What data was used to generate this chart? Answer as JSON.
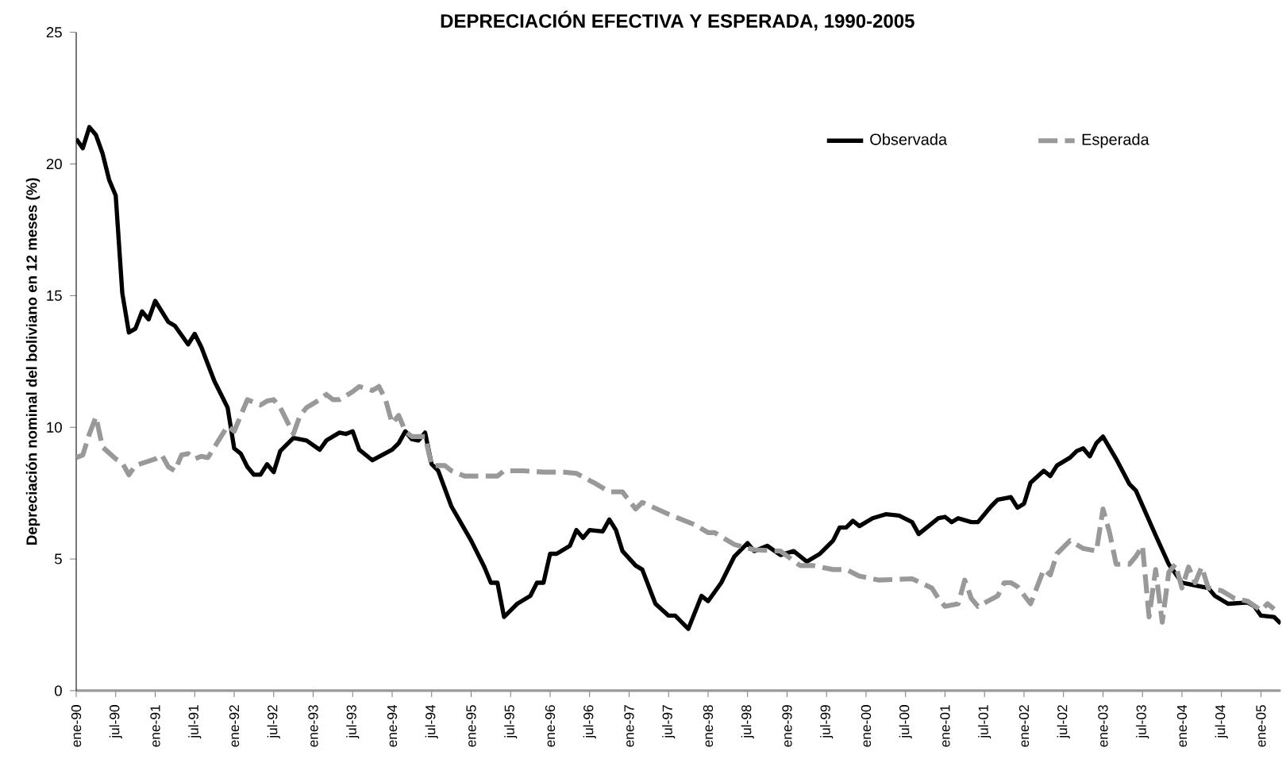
{
  "chart_data": {
    "type": "line",
    "title": "DEPRECIACIÓN EFECTIVA Y ESPERADA, 1990-2005",
    "ylabel": "Depreciación nominal del boliviano en 12 meses (%)",
    "xlim": [
      "1990-01",
      "2005-04"
    ],
    "ylim": [
      0,
      25
    ],
    "yticks": [
      0,
      5,
      10,
      15,
      20,
      25
    ],
    "xticks": [
      {
        "value": "1990-01",
        "label": "ene-90"
      },
      {
        "value": "1990-07",
        "label": "jul-90"
      },
      {
        "value": "1991-01",
        "label": "ene-91"
      },
      {
        "value": "1991-07",
        "label": "jul-91"
      },
      {
        "value": "1992-01",
        "label": "ene-92"
      },
      {
        "value": "1992-07",
        "label": "jul-92"
      },
      {
        "value": "1993-01",
        "label": "ene-93"
      },
      {
        "value": "1993-07",
        "label": "jul-93"
      },
      {
        "value": "1994-01",
        "label": "ene-94"
      },
      {
        "value": "1994-07",
        "label": "jul-94"
      },
      {
        "value": "1995-01",
        "label": "ene-95"
      },
      {
        "value": "1995-07",
        "label": "jul-95"
      },
      {
        "value": "1996-01",
        "label": "ene-96"
      },
      {
        "value": "1996-07",
        "label": "jul-96"
      },
      {
        "value": "1997-01",
        "label": "ene-97"
      },
      {
        "value": "1997-07",
        "label": "jul-97"
      },
      {
        "value": "1998-01",
        "label": "ene-98"
      },
      {
        "value": "1998-07",
        "label": "jul-98"
      },
      {
        "value": "1999-01",
        "label": "ene-99"
      },
      {
        "value": "1999-07",
        "label": "jul-99"
      },
      {
        "value": "2000-01",
        "label": "ene-00"
      },
      {
        "value": "2000-07",
        "label": "jul-00"
      },
      {
        "value": "2001-01",
        "label": "ene-01"
      },
      {
        "value": "2001-07",
        "label": "jul-01"
      },
      {
        "value": "2002-01",
        "label": "ene-02"
      },
      {
        "value": "2002-07",
        "label": "jul-02"
      },
      {
        "value": "2003-01",
        "label": "ene-03"
      },
      {
        "value": "2003-07",
        "label": "jul-03"
      },
      {
        "value": "2004-01",
        "label": "ene-04"
      },
      {
        "value": "2004-07",
        "label": "jul-04"
      },
      {
        "value": "2005-01",
        "label": "ene-05"
      }
    ],
    "grid": false,
    "legend": "top right",
    "marker": "none",
    "series": [
      {
        "name": "Observada",
        "color": "#000000",
        "line_style": "solid",
        "x": [
          "1990-01",
          "1990-02",
          "1990-03",
          "1990-04",
          "1990-05",
          "1990-06",
          "1990-07",
          "1990-08",
          "1990-09",
          "1990-10",
          "1990-11",
          "1990-12",
          "1991-01",
          "1991-03",
          "1991-04",
          "1991-06",
          "1991-07",
          "1991-08",
          "1991-10",
          "1991-11",
          "1991-12",
          "1992-01",
          "1992-02",
          "1992-03",
          "1992-04",
          "1992-05",
          "1992-06",
          "1992-07",
          "1992-08",
          "1992-10",
          "1992-12",
          "1993-02",
          "1993-03",
          "1993-05",
          "1993-06",
          "1993-07",
          "1993-08",
          "1993-10",
          "1994-01",
          "1994-02",
          "1994-03",
          "1994-04",
          "1994-05",
          "1994-06",
          "1994-07",
          "1994-08",
          "1994-10",
          "1995-01",
          "1995-03",
          "1995-04",
          "1995-05",
          "1995-06",
          "1995-08",
          "1995-10",
          "1995-11",
          "1995-12",
          "1996-01",
          "1996-02",
          "1996-04",
          "1996-05",
          "1996-06",
          "1996-07",
          "1996-09",
          "1996-10",
          "1996-11",
          "1996-12",
          "1997-02",
          "1997-03",
          "1997-05",
          "1997-07",
          "1997-08",
          "1997-10",
          "1997-12",
          "1998-01",
          "1998-03",
          "1998-05",
          "1998-07",
          "1998-08",
          "1998-10",
          "1998-12",
          "1999-02",
          "1999-04",
          "1999-06",
          "1999-08",
          "1999-09",
          "1999-10",
          "1999-11",
          "1999-12",
          "2000-02",
          "2000-04",
          "2000-06",
          "2000-08",
          "2000-09",
          "2000-12",
          "2001-01",
          "2001-02",
          "2001-03",
          "2001-05",
          "2001-06",
          "2001-08",
          "2001-09",
          "2001-11",
          "2001-12",
          "2002-01",
          "2002-02",
          "2002-04",
          "2002-05",
          "2002-06",
          "2002-08",
          "2002-09",
          "2002-10",
          "2002-11",
          "2002-12",
          "2003-01",
          "2003-03",
          "2003-05",
          "2003-06",
          "2003-09",
          "2003-11",
          "2004-01",
          "2004-03",
          "2004-05",
          "2004-06",
          "2004-08",
          "2004-11",
          "2004-12",
          "2005-01",
          "2005-03",
          "2005-04"
        ],
        "values": [
          20.95,
          20.6,
          21.4,
          21.1,
          20.4,
          19.4,
          18.8,
          15.1,
          13.6,
          13.75,
          14.4,
          14.1,
          14.8,
          14.0,
          13.85,
          13.15,
          13.55,
          13.05,
          11.75,
          11.25,
          10.75,
          9.2,
          9.0,
          8.5,
          8.2,
          8.2,
          8.6,
          8.3,
          9.1,
          9.6,
          9.5,
          9.15,
          9.5,
          9.8,
          9.75,
          9.85,
          9.15,
          8.75,
          9.15,
          9.4,
          9.85,
          9.55,
          9.5,
          9.8,
          8.6,
          8.35,
          7.0,
          5.7,
          4.7,
          4.1,
          4.1,
          2.8,
          3.3,
          3.6,
          4.1,
          4.1,
          5.2,
          5.2,
          5.5,
          6.1,
          5.8,
          6.1,
          6.05,
          6.5,
          6.1,
          5.3,
          4.75,
          4.6,
          3.3,
          2.85,
          2.85,
          2.35,
          3.6,
          3.4,
          4.1,
          5.1,
          5.6,
          5.3,
          5.5,
          5.15,
          5.3,
          4.9,
          5.2,
          5.7,
          6.2,
          6.2,
          6.45,
          6.25,
          6.55,
          6.7,
          6.65,
          6.4,
          5.95,
          6.55,
          6.6,
          6.4,
          6.55,
          6.4,
          6.4,
          7.0,
          7.25,
          7.35,
          6.95,
          7.1,
          7.9,
          8.35,
          8.15,
          8.55,
          8.85,
          9.1,
          9.2,
          8.9,
          9.4,
          9.65,
          8.8,
          7.85,
          7.6,
          5.9,
          4.8,
          4.1,
          4.0,
          3.9,
          3.6,
          3.3,
          3.35,
          3.2,
          2.85,
          2.8,
          2.55
        ]
      },
      {
        "name": "Esperada",
        "color": "#999999",
        "line_style": "dashed",
        "x": [
          "1990-01",
          "1990-02",
          "1990-03",
          "1990-04",
          "1990-05",
          "1990-07",
          "1990-08",
          "1990-09",
          "1990-10",
          "1991-01",
          "1991-02",
          "1991-03",
          "1991-04",
          "1991-05",
          "1991-06",
          "1991-07",
          "1991-08",
          "1991-09",
          "1991-11",
          "1991-12",
          "1992-01",
          "1992-02",
          "1992-03",
          "1992-05",
          "1992-06",
          "1992-07",
          "1992-08",
          "1992-10",
          "1992-11",
          "1992-12",
          "1993-02",
          "1993-03",
          "1993-04",
          "1993-05",
          "1993-07",
          "1993-08",
          "1993-10",
          "1993-11",
          "1993-12",
          "1994-01",
          "1994-02",
          "1994-03",
          "1994-04",
          "1994-06",
          "1994-07",
          "1994-09",
          "1994-10",
          "1994-12",
          "1995-02",
          "1995-05",
          "1995-06",
          "1995-09",
          "1995-12",
          "1996-03",
          "1996-05",
          "1996-08",
          "1996-10",
          "1996-12",
          "1997-02",
          "1997-03",
          "1997-07",
          "1997-11",
          "1998-01",
          "1998-02",
          "1998-05",
          "1998-08",
          "1998-12",
          "1999-03",
          "1999-05",
          "1999-08",
          "1999-10",
          "1999-12",
          "2000-03",
          "2000-08",
          "2000-11",
          "2000-12",
          "2001-01",
          "2001-03",
          "2001-04",
          "2001-05",
          "2001-06",
          "2001-09",
          "2001-10",
          "2001-11",
          "2001-12",
          "2002-02",
          "2002-04",
          "2002-05",
          "2002-06",
          "2002-08",
          "2002-10",
          "2002-12",
          "2003-01",
          "2003-02",
          "2003-03",
          "2003-05",
          "2003-06",
          "2003-07",
          "2003-08",
          "2003-09",
          "2003-10",
          "2003-11",
          "2003-12",
          "2004-01",
          "2004-02",
          "2004-03",
          "2004-04",
          "2004-05",
          "2004-07",
          "2004-09",
          "2004-11",
          "2005-01",
          "2005-02",
          "2005-03"
        ],
        "values": [
          8.85,
          8.95,
          9.75,
          10.4,
          9.25,
          8.8,
          8.65,
          8.2,
          8.55,
          8.8,
          8.95,
          8.5,
          8.35,
          8.95,
          9.0,
          8.8,
          8.9,
          8.85,
          9.65,
          10.05,
          9.85,
          10.45,
          11.05,
          10.85,
          11.0,
          11.05,
          10.75,
          9.75,
          10.45,
          10.75,
          11.05,
          11.25,
          11.05,
          11.05,
          11.35,
          11.55,
          11.4,
          11.55,
          11.05,
          10.15,
          10.45,
          9.85,
          9.65,
          9.65,
          8.55,
          8.55,
          8.35,
          8.15,
          8.15,
          8.15,
          8.35,
          8.35,
          8.3,
          8.3,
          8.25,
          7.85,
          7.55,
          7.55,
          6.9,
          7.15,
          6.7,
          6.3,
          6.0,
          6.0,
          5.55,
          5.35,
          5.3,
          4.75,
          4.75,
          4.6,
          4.6,
          4.35,
          4.2,
          4.25,
          3.9,
          3.5,
          3.2,
          3.3,
          4.2,
          3.5,
          3.2,
          3.6,
          4.1,
          4.1,
          3.95,
          3.3,
          4.6,
          4.4,
          5.2,
          5.7,
          5.4,
          5.3,
          6.9,
          6.0,
          4.8,
          4.8,
          5.1,
          5.5,
          2.8,
          4.6,
          2.6,
          4.5,
          4.8,
          3.9,
          4.7,
          4.1,
          4.7,
          3.9,
          3.8,
          3.5,
          3.4,
          3.05,
          3.3,
          3.1
        ]
      }
    ]
  }
}
